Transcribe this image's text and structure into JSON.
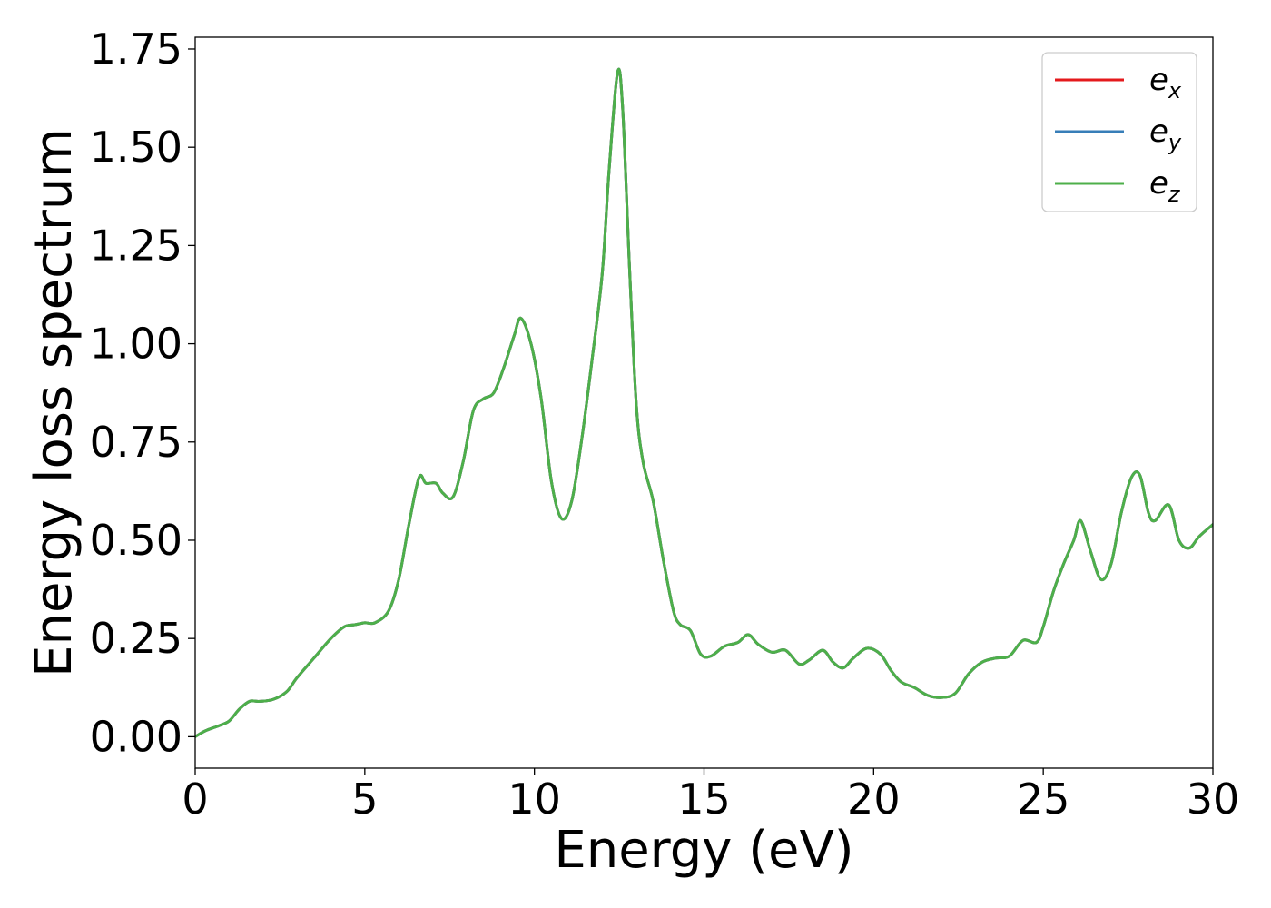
{
  "chart_data": {
    "type": "line",
    "title": "",
    "xlabel": "Energy (eV)",
    "ylabel": "Energy loss spectrum",
    "xlim": [
      0,
      30
    ],
    "ylim": [
      -0.08,
      1.78
    ],
    "xticks": [
      0,
      5,
      10,
      15,
      20,
      25,
      30
    ],
    "xtick_labels": [
      "0",
      "5",
      "10",
      "15",
      "20",
      "25",
      "30"
    ],
    "yticks": [
      0.0,
      0.25,
      0.5,
      0.75,
      1.0,
      1.25,
      1.5,
      1.75
    ],
    "ytick_labels": [
      "0.00",
      "0.25",
      "0.50",
      "0.75",
      "1.00",
      "1.25",
      "1.50",
      "1.75"
    ],
    "grid": false,
    "legend_position": "top-right",
    "series": [
      {
        "name": "e",
        "subscript": "x",
        "color": "#e41a1c",
        "x": [
          0,
          0.3,
          0.7,
          1.0,
          1.3,
          1.6,
          1.9,
          2.3,
          2.7,
          3.0,
          3.5,
          4.0,
          4.4,
          4.7,
          5.0,
          5.3,
          5.7,
          6.0,
          6.3,
          6.6,
          6.8,
          7.1,
          7.3,
          7.6,
          7.9,
          8.2,
          8.5,
          8.8,
          9.1,
          9.4,
          9.6,
          9.9,
          10.2,
          10.5,
          10.8,
          11.1,
          11.4,
          11.7,
          12.0,
          12.2,
          12.45,
          12.6,
          12.8,
          13.0,
          13.2,
          13.5,
          13.8,
          14.1,
          14.3,
          14.6,
          14.9,
          15.2,
          15.6,
          16.0,
          16.3,
          16.6,
          17.0,
          17.4,
          17.8,
          18.1,
          18.5,
          18.8,
          19.1,
          19.4,
          19.8,
          20.2,
          20.5,
          20.8,
          21.2,
          21.6,
          22.0,
          22.4,
          22.8,
          23.2,
          23.6,
          24.0,
          24.4,
          24.8,
          25.0,
          25.3,
          25.6,
          25.9,
          26.1,
          26.4,
          26.7,
          27.0,
          27.3,
          27.6,
          27.85,
          28.1,
          28.3,
          28.7,
          29.0,
          29.3,
          29.6,
          30.0
        ],
        "y": [
          0.0,
          0.015,
          0.028,
          0.04,
          0.07,
          0.09,
          0.09,
          0.095,
          0.115,
          0.15,
          0.2,
          0.25,
          0.28,
          0.285,
          0.29,
          0.29,
          0.32,
          0.4,
          0.54,
          0.66,
          0.645,
          0.645,
          0.62,
          0.61,
          0.7,
          0.83,
          0.86,
          0.875,
          0.94,
          1.02,
          1.065,
          1.0,
          0.86,
          0.65,
          0.555,
          0.6,
          0.76,
          0.96,
          1.18,
          1.44,
          1.69,
          1.6,
          1.2,
          0.85,
          0.7,
          0.6,
          0.45,
          0.32,
          0.285,
          0.27,
          0.21,
          0.205,
          0.23,
          0.24,
          0.26,
          0.235,
          0.215,
          0.22,
          0.185,
          0.195,
          0.22,
          0.19,
          0.175,
          0.2,
          0.225,
          0.21,
          0.17,
          0.14,
          0.125,
          0.105,
          0.1,
          0.11,
          0.16,
          0.19,
          0.2,
          0.205,
          0.245,
          0.24,
          0.28,
          0.37,
          0.44,
          0.5,
          0.55,
          0.47,
          0.4,
          0.44,
          0.57,
          0.66,
          0.665,
          0.57,
          0.55,
          0.59,
          0.5,
          0.48,
          0.51,
          0.54
        ]
      },
      {
        "name": "e",
        "subscript": "y",
        "color": "#377eb8",
        "x": [
          0,
          0.3,
          0.7,
          1.0,
          1.3,
          1.6,
          1.9,
          2.3,
          2.7,
          3.0,
          3.5,
          4.0,
          4.4,
          4.7,
          5.0,
          5.3,
          5.7,
          6.0,
          6.3,
          6.6,
          6.8,
          7.1,
          7.3,
          7.6,
          7.9,
          8.2,
          8.5,
          8.8,
          9.1,
          9.4,
          9.6,
          9.9,
          10.2,
          10.5,
          10.8,
          11.1,
          11.4,
          11.7,
          12.0,
          12.2,
          12.45,
          12.6,
          12.8,
          13.0,
          13.2,
          13.5,
          13.8,
          14.1,
          14.3,
          14.6,
          14.9,
          15.2,
          15.6,
          16.0,
          16.3,
          16.6,
          17.0,
          17.4,
          17.8,
          18.1,
          18.5,
          18.8,
          19.1,
          19.4,
          19.8,
          20.2,
          20.5,
          20.8,
          21.2,
          21.6,
          22.0,
          22.4,
          22.8,
          23.2,
          23.6,
          24.0,
          24.4,
          24.8,
          25.0,
          25.3,
          25.6,
          25.9,
          26.1,
          26.4,
          26.7,
          27.0,
          27.3,
          27.6,
          27.85,
          28.1,
          28.3,
          28.7,
          29.0,
          29.3,
          29.6,
          30.0
        ],
        "y": [
          0.0,
          0.015,
          0.028,
          0.04,
          0.07,
          0.09,
          0.09,
          0.095,
          0.115,
          0.15,
          0.2,
          0.25,
          0.28,
          0.285,
          0.29,
          0.29,
          0.32,
          0.4,
          0.54,
          0.66,
          0.645,
          0.645,
          0.62,
          0.61,
          0.7,
          0.83,
          0.86,
          0.875,
          0.94,
          1.02,
          1.065,
          1.0,
          0.86,
          0.65,
          0.555,
          0.6,
          0.76,
          0.96,
          1.18,
          1.44,
          1.69,
          1.6,
          1.2,
          0.85,
          0.7,
          0.6,
          0.45,
          0.32,
          0.285,
          0.27,
          0.21,
          0.205,
          0.23,
          0.24,
          0.26,
          0.235,
          0.215,
          0.22,
          0.185,
          0.195,
          0.22,
          0.19,
          0.175,
          0.2,
          0.225,
          0.21,
          0.17,
          0.14,
          0.125,
          0.105,
          0.1,
          0.11,
          0.16,
          0.19,
          0.2,
          0.205,
          0.245,
          0.24,
          0.28,
          0.37,
          0.44,
          0.5,
          0.55,
          0.47,
          0.4,
          0.44,
          0.57,
          0.66,
          0.665,
          0.57,
          0.55,
          0.59,
          0.5,
          0.48,
          0.51,
          0.54
        ]
      },
      {
        "name": "e",
        "subscript": "z",
        "color": "#4daf4a",
        "x": [
          0,
          0.3,
          0.7,
          1.0,
          1.3,
          1.6,
          1.9,
          2.3,
          2.7,
          3.0,
          3.5,
          4.0,
          4.4,
          4.7,
          5.0,
          5.3,
          5.7,
          6.0,
          6.3,
          6.6,
          6.8,
          7.1,
          7.3,
          7.6,
          7.9,
          8.2,
          8.5,
          8.8,
          9.1,
          9.4,
          9.6,
          9.9,
          10.2,
          10.5,
          10.8,
          11.1,
          11.4,
          11.7,
          12.0,
          12.2,
          12.45,
          12.6,
          12.8,
          13.0,
          13.2,
          13.5,
          13.8,
          14.1,
          14.3,
          14.6,
          14.9,
          15.2,
          15.6,
          16.0,
          16.3,
          16.6,
          17.0,
          17.4,
          17.8,
          18.1,
          18.5,
          18.8,
          19.1,
          19.4,
          19.8,
          20.2,
          20.5,
          20.8,
          21.2,
          21.6,
          22.0,
          22.4,
          22.8,
          23.2,
          23.6,
          24.0,
          24.4,
          24.8,
          25.0,
          25.3,
          25.6,
          25.9,
          26.1,
          26.4,
          26.7,
          27.0,
          27.3,
          27.6,
          27.85,
          28.1,
          28.3,
          28.7,
          29.0,
          29.3,
          29.6,
          30.0
        ],
        "y": [
          0.0,
          0.015,
          0.028,
          0.04,
          0.07,
          0.09,
          0.09,
          0.095,
          0.115,
          0.15,
          0.2,
          0.25,
          0.28,
          0.285,
          0.29,
          0.29,
          0.32,
          0.4,
          0.54,
          0.66,
          0.645,
          0.645,
          0.62,
          0.61,
          0.7,
          0.83,
          0.86,
          0.875,
          0.94,
          1.02,
          1.065,
          1.0,
          0.86,
          0.65,
          0.555,
          0.6,
          0.76,
          0.96,
          1.18,
          1.44,
          1.69,
          1.6,
          1.2,
          0.85,
          0.7,
          0.6,
          0.45,
          0.32,
          0.285,
          0.27,
          0.21,
          0.205,
          0.23,
          0.24,
          0.26,
          0.235,
          0.215,
          0.22,
          0.185,
          0.195,
          0.22,
          0.19,
          0.175,
          0.2,
          0.225,
          0.21,
          0.17,
          0.14,
          0.125,
          0.105,
          0.1,
          0.11,
          0.16,
          0.19,
          0.2,
          0.205,
          0.245,
          0.24,
          0.28,
          0.37,
          0.44,
          0.5,
          0.55,
          0.47,
          0.4,
          0.44,
          0.57,
          0.66,
          0.665,
          0.57,
          0.55,
          0.59,
          0.5,
          0.48,
          0.51,
          0.54
        ]
      }
    ]
  }
}
